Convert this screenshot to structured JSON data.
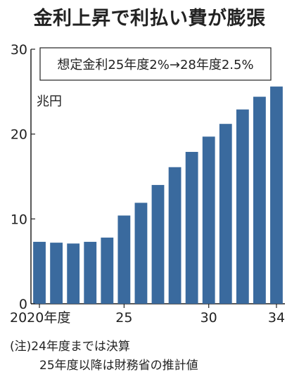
{
  "title": "金利上昇で利払い費が膨張",
  "annotation": "想定金利25年度2%→28年度2.5%",
  "unit_label": "兆円",
  "notes": {
    "line1": "(注)24年度までは決算",
    "line2": "25年度以降は財務省の推計値"
  },
  "colors": {
    "bar": "#3a6a9e",
    "axis": "#222222",
    "grid": "#cfcfcf"
  },
  "chart_data": {
    "type": "bar",
    "categories": [
      "2020",
      "2021",
      "2022",
      "2023",
      "2024",
      "2025",
      "2026",
      "2027",
      "2028",
      "2029",
      "2030",
      "2031",
      "2032",
      "2033",
      "2034"
    ],
    "x_tick_labels": [
      {
        "index": 0,
        "label": "2020年度"
      },
      {
        "index": 5,
        "label": "25"
      },
      {
        "index": 10,
        "label": "30"
      },
      {
        "index": 14,
        "label": "34"
      }
    ],
    "values": [
      7.3,
      7.2,
      7.1,
      7.3,
      7.8,
      10.4,
      11.9,
      14.0,
      16.1,
      17.9,
      19.7,
      21.2,
      22.9,
      24.4,
      25.6
    ],
    "ylim": [
      0,
      30
    ],
    "yticks": [
      0,
      10,
      20,
      30
    ],
    "ylabel": "兆円",
    "grid": false
  }
}
